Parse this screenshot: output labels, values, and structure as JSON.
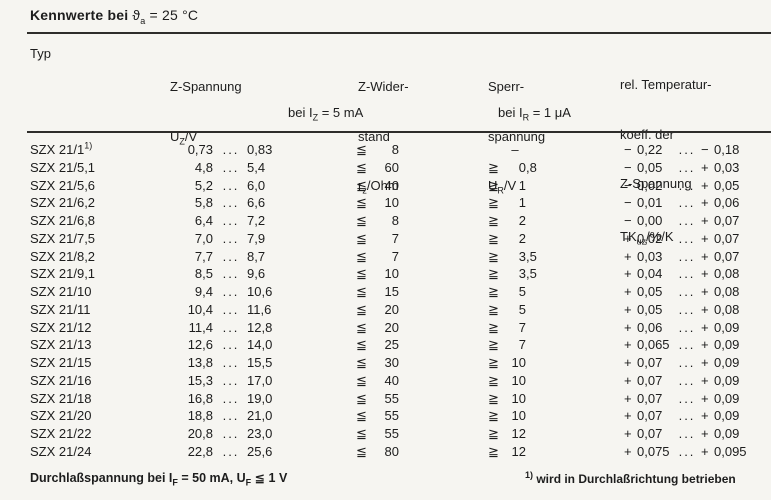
{
  "title": {
    "pre": "Kennwerte bei ",
    "theta": "ϑ",
    "theta_sub": "a",
    "post": " = 25 °C"
  },
  "symbols": {
    "lte": "≦",
    "gte": "≧",
    "dots": "...",
    "dash": "–"
  },
  "columns": {
    "typ": "Typ",
    "uz": {
      "line1": "Z-Spannung",
      "sym_pre": "U",
      "sym_sub": "Z",
      "sym_post": "/V"
    },
    "rz": {
      "line1": "Z-Wider-",
      "line2": "stand",
      "sym_pre": "r",
      "sym_sub": "z",
      "sym_post": "/Ohm"
    },
    "ur": {
      "line1": "Sperr-",
      "line2": "spannung",
      "sym_pre": "U",
      "sym_sub": "R",
      "sym_post": "/V"
    },
    "tk": {
      "line1": "rel. Temperatur-",
      "line2": "koeff. der",
      "line3": "Z-Spannung",
      "sym_pre": "TK",
      "sym_sub": "uz",
      "sym_post": "/%/K"
    },
    "uz_cond": {
      "pre": "bei I",
      "sub": "Z",
      "post": " = 5 mA"
    },
    "ur_cond": {
      "pre": "bei I",
      "sub": "R",
      "post": " = 1 μA"
    }
  },
  "rows": [
    {
      "type": "SZX 21/1",
      "type_sup": "1)",
      "uz_min": "0,73",
      "uz_max": "0,83",
      "rz": "8",
      "ur": null,
      "tk_min": "−0,22",
      "tk_max": "−0,18"
    },
    {
      "type": "SZX 21/5,1",
      "type_sup": "",
      "uz_min": "4,8",
      "uz_max": "5,4",
      "rz": "60",
      "ur": "0,8",
      "tk_min": "−0,05",
      "tk_max": "+0,03"
    },
    {
      "type": "SZX 21/5,6",
      "type_sup": "",
      "uz_min": "5,2",
      "uz_max": "6,0",
      "rz": "40",
      "ur": "1",
      "tk_min": "−0,02",
      "tk_max": "+0,05"
    },
    {
      "type": "SZX 21/6,2",
      "type_sup": "",
      "uz_min": "5,8",
      "uz_max": "6,6",
      "rz": "10",
      "ur": "1",
      "tk_min": "−0,01",
      "tk_max": "+0,06"
    },
    {
      "type": "SZX 21/6,8",
      "type_sup": "",
      "uz_min": "6,4",
      "uz_max": "7,2",
      "rz": "8",
      "ur": "2",
      "tk_min": "−0,00",
      "tk_max": "+0,07"
    },
    {
      "type": "SZX 21/7,5",
      "type_sup": "",
      "uz_min": "7,0",
      "uz_max": "7,9",
      "rz": "7",
      "ur": "2",
      "tk_min": "+0,02",
      "tk_max": "+0,07"
    },
    {
      "type": "SZX 21/8,2",
      "type_sup": "",
      "uz_min": "7,7",
      "uz_max": "8,7",
      "rz": "7",
      "ur": "3,5",
      "tk_min": "+0,03",
      "tk_max": "+0,07"
    },
    {
      "type": "SZX 21/9,1",
      "type_sup": "",
      "uz_min": "8,5",
      "uz_max": "9,6",
      "rz": "10",
      "ur": "3,5",
      "tk_min": "+0,04",
      "tk_max": "+0,08"
    },
    {
      "type": "SZX 21/10",
      "type_sup": "",
      "uz_min": "9,4",
      "uz_max": "10,6",
      "rz": "15",
      "ur": "5",
      "tk_min": "+0,05",
      "tk_max": "+0,08"
    },
    {
      "type": "SZX 21/11",
      "type_sup": "",
      "uz_min": "10,4",
      "uz_max": "11,6",
      "rz": "20",
      "ur": "5",
      "tk_min": "+0,05",
      "tk_max": "+0,08"
    },
    {
      "type": "SZX 21/12",
      "type_sup": "",
      "uz_min": "11,4",
      "uz_max": "12,8",
      "rz": "20",
      "ur": "7",
      "tk_min": "+0,06",
      "tk_max": "+0,09"
    },
    {
      "type": "SZX 21/13",
      "type_sup": "",
      "uz_min": "12,6",
      "uz_max": "14,0",
      "rz": "25",
      "ur": "7",
      "tk_min": "+0,065",
      "tk_max": "+0,09"
    },
    {
      "type": "SZX 21/15",
      "type_sup": "",
      "uz_min": "13,8",
      "uz_max": "15,5",
      "rz": "30",
      "ur": "10",
      "tk_min": "+0,07",
      "tk_max": "+0,09"
    },
    {
      "type": "SZX 21/16",
      "type_sup": "",
      "uz_min": "15,3",
      "uz_max": "17,0",
      "rz": "40",
      "ur": "10",
      "tk_min": "+0,07",
      "tk_max": "+0,09"
    },
    {
      "type": "SZX 21/18",
      "type_sup": "",
      "uz_min": "16,8",
      "uz_max": "19,0",
      "rz": "55",
      "ur": "10",
      "tk_min": "+0,07",
      "tk_max": "+0,09"
    },
    {
      "type": "SZX 21/20",
      "type_sup": "",
      "uz_min": "18,8",
      "uz_max": "21,0",
      "rz": "55",
      "ur": "10",
      "tk_min": "+0,07",
      "tk_max": "+0,09"
    },
    {
      "type": "SZX 21/22",
      "type_sup": "",
      "uz_min": "20,8",
      "uz_max": "23,0",
      "rz": "55",
      "ur": "12",
      "tk_min": "+0,07",
      "tk_max": "+0,09"
    },
    {
      "type": "SZX 21/24",
      "type_sup": "",
      "uz_min": "22,8",
      "uz_max": "25,6",
      "rz": "80",
      "ur": "12",
      "tk_min": "+0,075",
      "tk_max": "+0,095"
    }
  ],
  "footer": {
    "left": {
      "bold": "Durchlaßspannung",
      "p1": " bei I",
      "s1": "F",
      "p2": " = 50 mA, ",
      "p3": "U",
      "s2": "F",
      "p4": " ≦ 1 V"
    },
    "note": {
      "sup": "1)",
      "text": " wird in Durchlaßrichtung betrieben"
    }
  }
}
